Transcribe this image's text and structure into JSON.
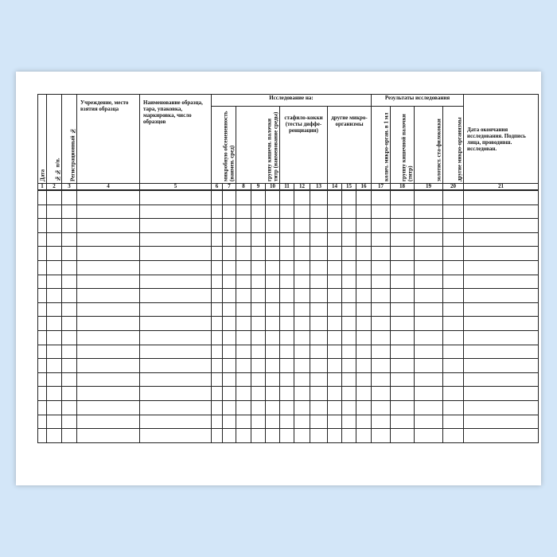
{
  "form": {
    "columns": {
      "c1": "Дата",
      "c2": "№№ п/п.",
      "c3": "Регистрационный №",
      "c4": "Учреждение, место взятия образца",
      "c5": "Наименование образца, тара, упаковка, маркировка, число образцов",
      "research_group": "Исследование на:",
      "c6_7": "микробную обсемененность (наимен. сред)",
      "c8_10": "группу кишечн. палочки титр (наименование среды)",
      "c11_13": "стафило-кокки (тесты диффе-ренциации)",
      "c14_16": "другие микро-организмы",
      "results_group": "Результаты исследования",
      "c17": "колич. микро-орган. в 1 мл",
      "c18": "группу кишечной палочки (титр)",
      "c19": "золотист. ста-филококки",
      "c20": "другие микро-организмы",
      "c21": "Дата окончания исследования. Подпись лица, проводивш. исследован."
    },
    "column_numbers": [
      "1",
      "2",
      "3",
      "4",
      "5",
      "6",
      "7",
      "8",
      "9",
      "10",
      "11",
      "12",
      "13",
      "14",
      "15",
      "16",
      "17",
      "18",
      "19",
      "20",
      "21"
    ],
    "empty_rows": 18
  }
}
